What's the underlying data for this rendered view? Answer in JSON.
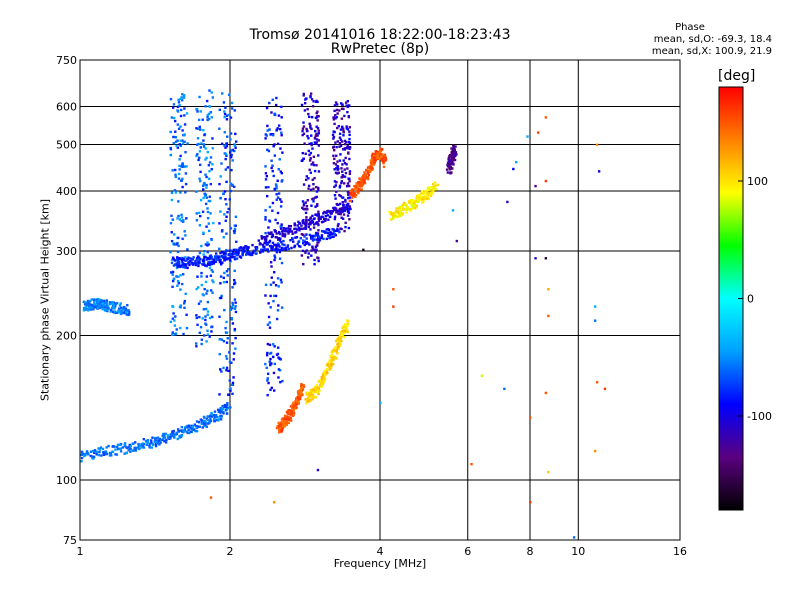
{
  "chart_data": {
    "type": "scatter",
    "title": "Tromsø 20141016 18:22:00-18:23:43",
    "subtitle": "RwPretec (8p)",
    "xlabel": "Frequency [MHz]",
    "ylabel": "Stationary phase Virtual Height [km]",
    "xscale": "log",
    "yscale": "log",
    "xlim": [
      1,
      16
    ],
    "ylim": [
      75,
      750
    ],
    "xticks": [
      1,
      2,
      4,
      6,
      8,
      10,
      16
    ],
    "yticks": [
      75,
      100,
      200,
      300,
      400,
      500,
      600,
      750
    ],
    "grid": true,
    "phase_legend": {
      "title": "Phase",
      "line_o": "mean, sd,O: -69.3, 18.4",
      "line_x": "mean, sd,X: 100.9, 21.9"
    },
    "colorbar": {
      "label": "[deg]",
      "range": [
        -180,
        180
      ],
      "ticks": [
        100,
        0,
        -100
      ],
      "colors": [
        "#000000",
        "#5a0080",
        "#0000ff",
        "#00a0ff",
        "#00ffff",
        "#00ff00",
        "#ffff00",
        "#ff8000",
        "#ff0000"
      ]
    },
    "traces": [
      {
        "name": "",
        "phase": -85,
        "x": [
          1.55,
          1.6,
          1.7,
          1.8,
          1.9,
          2.0,
          2.1,
          2.2,
          2.4,
          2.6,
          2.9,
          3.1,
          3.3
        ],
        "y": [
          285,
          283,
          285,
          287,
          290,
          294,
          298,
          302,
          305,
          310,
          318,
          326,
          332
        ]
      },
      {
        "name": "",
        "phase": -105,
        "x": [
          2.3,
          2.5,
          2.7,
          2.9,
          3.1,
          3.3,
          3.5
        ],
        "y": [
          315,
          325,
          335,
          345,
          355,
          368,
          378
        ]
      },
      {
        "name": "",
        "phase": -60,
        "x": [
          1.0,
          1.1,
          1.2,
          1.3,
          1.4,
          1.5,
          1.6,
          1.7,
          1.8,
          1.9,
          2.0
        ],
        "y": [
          112,
          114,
          116,
          118,
          120,
          123,
          126,
          129,
          133,
          137,
          142
        ]
      },
      {
        "name": "",
        "phase": -55,
        "x": [
          1.02,
          1.05,
          1.08,
          1.1,
          1.15,
          1.2,
          1.25
        ],
        "y": [
          230,
          232,
          233,
          232,
          230,
          228,
          226
        ]
      },
      {
        "name": "",
        "phase": 150,
        "x": [
          2.5,
          2.55,
          2.6,
          2.65,
          2.7,
          2.75,
          2.8
        ],
        "y": [
          128,
          130,
          134,
          138,
          144,
          150,
          156
        ]
      },
      {
        "name": "",
        "phase": 105,
        "x": [
          2.85,
          2.95,
          3.05,
          3.15,
          3.25,
          3.35,
          3.45
        ],
        "y": [
          148,
          152,
          160,
          172,
          185,
          200,
          212
        ]
      },
      {
        "name": "",
        "phase": 150,
        "x": [
          3.5,
          3.6,
          3.7,
          3.8,
          3.9,
          4.0,
          4.1
        ],
        "y": [
          390,
          405,
          420,
          440,
          470,
          480,
          455
        ]
      },
      {
        "name": "",
        "phase": 95,
        "x": [
          4.2,
          4.4,
          4.6,
          4.8,
          5.0,
          5.2
        ],
        "y": [
          355,
          365,
          375,
          385,
          395,
          410
        ]
      },
      {
        "name": "",
        "phase": -130,
        "x": [
          5.5,
          5.55,
          5.6,
          5.65
        ],
        "y": [
          445,
          460,
          475,
          490
        ]
      }
    ],
    "columns": [
      {
        "x": 1.58,
        "ymin": 200,
        "ymax": 640,
        "phase": -60
      },
      {
        "x": 1.78,
        "ymin": 190,
        "ymax": 650,
        "phase": -60
      },
      {
        "x": 1.98,
        "ymin": 150,
        "ymax": 640,
        "phase": -70
      },
      {
        "x": 2.45,
        "ymin": 150,
        "ymax": 630,
        "phase": -80
      },
      {
        "x": 2.9,
        "ymin": 280,
        "ymax": 640,
        "phase": -110
      },
      {
        "x": 3.35,
        "ymin": 330,
        "ymax": 620,
        "phase": -110
      }
    ],
    "isolated_points": [
      {
        "x": 1.83,
        "y": 92,
        "phase": 150
      },
      {
        "x": 2.45,
        "y": 90,
        "phase": 130
      },
      {
        "x": 3.0,
        "y": 105,
        "phase": -110
      },
      {
        "x": 3.7,
        "y": 302,
        "phase": -170
      },
      {
        "x": 4.25,
        "y": 250,
        "phase": 150
      },
      {
        "x": 4.25,
        "y": 230,
        "phase": 160
      },
      {
        "x": 4.0,
        "y": 145,
        "phase": -40
      },
      {
        "x": 6.1,
        "y": 108,
        "phase": 150
      },
      {
        "x": 6.4,
        "y": 165,
        "phase": 80
      },
      {
        "x": 7.1,
        "y": 155,
        "phase": -60
      },
      {
        "x": 7.2,
        "y": 380,
        "phase": -110
      },
      {
        "x": 7.4,
        "y": 445,
        "phase": -90
      },
      {
        "x": 7.5,
        "y": 460,
        "phase": -40
      },
      {
        "x": 7.9,
        "y": 520,
        "phase": -40
      },
      {
        "x": 8.2,
        "y": 410,
        "phase": -130
      },
      {
        "x": 8.2,
        "y": 290,
        "phase": -110
      },
      {
        "x": 8.6,
        "y": 420,
        "phase": 160
      },
      {
        "x": 8.6,
        "y": 290,
        "phase": -160
      },
      {
        "x": 8.7,
        "y": 250,
        "phase": 120
      },
      {
        "x": 8.7,
        "y": 220,
        "phase": 150
      },
      {
        "x": 8.0,
        "y": 135,
        "phase": 150
      },
      {
        "x": 8.0,
        "y": 90,
        "phase": 160
      },
      {
        "x": 8.6,
        "y": 152,
        "phase": 150
      },
      {
        "x": 8.7,
        "y": 104,
        "phase": 110
      },
      {
        "x": 8.6,
        "y": 570,
        "phase": 150
      },
      {
        "x": 8.3,
        "y": 530,
        "phase": 160
      },
      {
        "x": 10.9,
        "y": 500,
        "phase": 130
      },
      {
        "x": 10.8,
        "y": 230,
        "phase": -40
      },
      {
        "x": 10.8,
        "y": 215,
        "phase": -60
      },
      {
        "x": 10.9,
        "y": 160,
        "phase": 150
      },
      {
        "x": 11.3,
        "y": 155,
        "phase": 160
      },
      {
        "x": 11.0,
        "y": 440,
        "phase": -100
      },
      {
        "x": 10.8,
        "y": 115,
        "phase": 130
      },
      {
        "x": 9.8,
        "y": 76,
        "phase": -60
      },
      {
        "x": 5.7,
        "y": 315,
        "phase": -130
      },
      {
        "x": 5.6,
        "y": 365,
        "phase": -40
      }
    ]
  }
}
